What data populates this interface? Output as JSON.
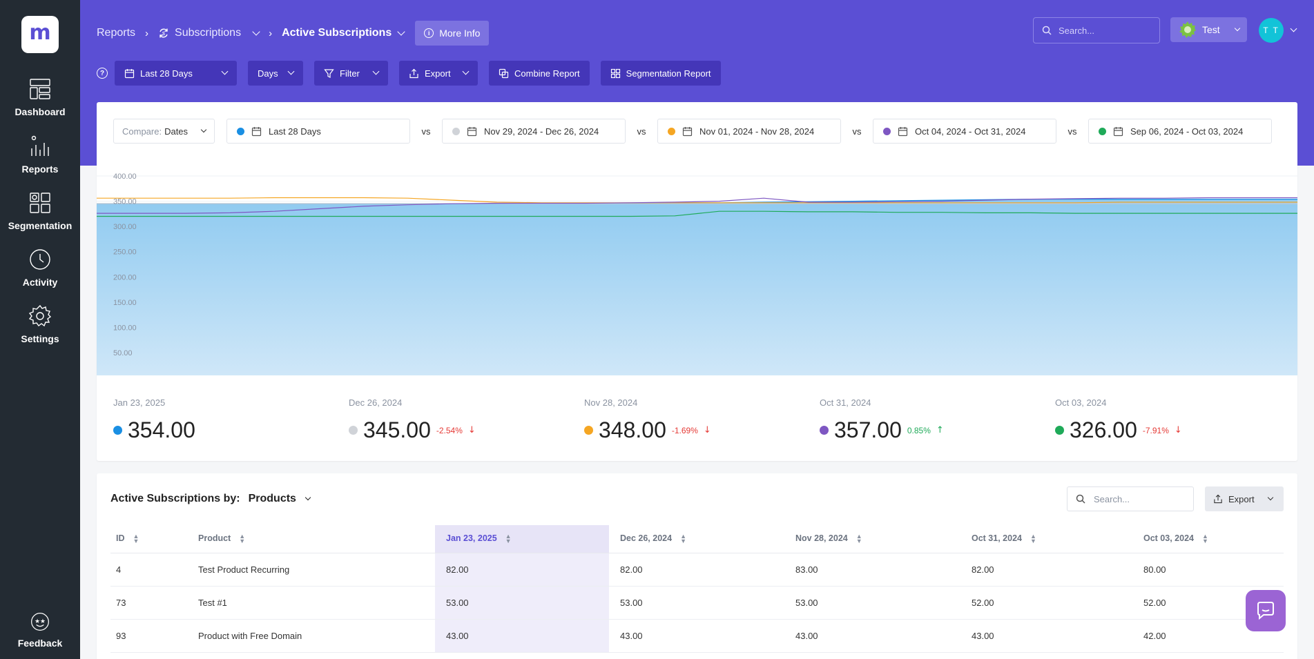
{
  "sidebar": {
    "logo_letter": "m",
    "items": [
      {
        "label": "Dashboard",
        "icon": "dashboard-icon"
      },
      {
        "label": "Reports",
        "icon": "reports-icon"
      },
      {
        "label": "Segmentation",
        "icon": "segmentation-icon"
      },
      {
        "label": "Activity",
        "icon": "activity-icon"
      },
      {
        "label": "Settings",
        "icon": "settings-icon"
      }
    ],
    "feedback_label": "Feedback"
  },
  "header": {
    "breadcrumb": {
      "root": "Reports",
      "section": "Subscriptions",
      "current": "Active Subscriptions"
    },
    "more_info_label": "More Info",
    "search_placeholder": "Search...",
    "account_label": "Test",
    "avatar_initials": "T T"
  },
  "toolbar": {
    "date_range": "Last 28 Days",
    "interval": "Days",
    "filter_label": "Filter",
    "export_label": "Export",
    "combine_label": "Combine Report",
    "segmentation_label": "Segmentation Report"
  },
  "compare": {
    "label": "Compare:",
    "value": "Dates",
    "vs_label": "vs",
    "ranges": [
      {
        "label": "Last 28 Days",
        "color": "#1a8fe3"
      },
      {
        "label": "Nov 29, 2024 - Dec 26, 2024",
        "color": "#d0d3d8"
      },
      {
        "label": "Nov 01, 2024 - Nov 28, 2024",
        "color": "#f5a623"
      },
      {
        "label": "Oct 04, 2024 - Oct 31, 2024",
        "color": "#7e57c2"
      },
      {
        "label": "Sep 06, 2024 - Oct 03, 2024",
        "color": "#1faa59"
      }
    ]
  },
  "chart_data": {
    "type": "area",
    "ylim": [
      0,
      400
    ],
    "y_ticks": [
      "400.00",
      "350.00",
      "300.00",
      "250.00",
      "200.00",
      "150.00",
      "100.00",
      "50.00"
    ],
    "grid": true,
    "series": [
      {
        "color": "#1a8fe3",
        "fill": true,
        "values": [
          345,
          345,
          345,
          345,
          345,
          345,
          345,
          345,
          345,
          345,
          346,
          346,
          346,
          347,
          347,
          348,
          349,
          350,
          351,
          352,
          353,
          354,
          354,
          354,
          354,
          354,
          354,
          354
        ]
      },
      {
        "color": "#c7c9cf",
        "values": [
          345,
          345,
          345,
          345,
          345,
          345,
          345,
          345,
          345,
          345,
          345,
          345,
          345,
          345,
          345,
          345,
          345,
          345,
          345,
          345,
          345,
          345,
          345,
          345,
          345,
          345,
          345,
          345
        ]
      },
      {
        "color": "#f5a623",
        "values": [
          356,
          356,
          356,
          356,
          357,
          357,
          357,
          356,
          352,
          348,
          347,
          347,
          347,
          347,
          347,
          347,
          347,
          347,
          347,
          347,
          347,
          347,
          347,
          348,
          348,
          348,
          348,
          348
        ]
      },
      {
        "color": "#7e57c2",
        "values": [
          326,
          326,
          326,
          327,
          330,
          335,
          340,
          343,
          345,
          346,
          346,
          346,
          347,
          348,
          350,
          356,
          348,
          348,
          349,
          350,
          352,
          354,
          355,
          356,
          356,
          357,
          357,
          357
        ]
      },
      {
        "color": "#1faa59",
        "values": [
          320,
          320,
          320,
          320,
          320,
          320,
          320,
          320,
          320,
          320,
          320,
          320,
          320,
          321,
          330,
          330,
          329,
          329,
          328,
          328,
          327,
          327,
          326,
          326,
          326,
          326,
          326,
          326
        ]
      }
    ]
  },
  "stats": [
    {
      "date": "Jan 23, 2025",
      "value": "354.00",
      "pct": "",
      "direction": "",
      "color": "#1a8fe3"
    },
    {
      "date": "Dec 26, 2024",
      "value": "345.00",
      "pct": "-2.54%",
      "direction": "down",
      "color": "#d0d3d8"
    },
    {
      "date": "Nov 28, 2024",
      "value": "348.00",
      "pct": "-1.69%",
      "direction": "down",
      "color": "#f5a623"
    },
    {
      "date": "Oct 31, 2024",
      "value": "357.00",
      "pct": "0.85%",
      "direction": "up",
      "color": "#7e57c2"
    },
    {
      "date": "Oct 03, 2024",
      "value": "326.00",
      "pct": "-7.91%",
      "direction": "down",
      "color": "#1faa59"
    }
  ],
  "table": {
    "title": "Active Subscriptions by:",
    "group_by": "Products",
    "search_placeholder": "Search...",
    "export_label": "Export",
    "columns": [
      "ID",
      "Product",
      "Jan 23, 2025",
      "Dec 26, 2024",
      "Nov 28, 2024",
      "Oct 31, 2024",
      "Oct 03, 2024"
    ],
    "rows": [
      [
        "4",
        "Test Product Recurring",
        "82.00",
        "82.00",
        "83.00",
        "82.00",
        "80.00"
      ],
      [
        "73",
        "Test #1",
        "53.00",
        "53.00",
        "53.00",
        "52.00",
        "52.00"
      ],
      [
        "93",
        "Product with Free Domain",
        "43.00",
        "43.00",
        "43.00",
        "43.00",
        "42.00"
      ]
    ]
  },
  "colors": {
    "brand": "#5b4fd4",
    "sidebar": "#232b33",
    "negative": "#e53935",
    "positive": "#1faa59"
  }
}
